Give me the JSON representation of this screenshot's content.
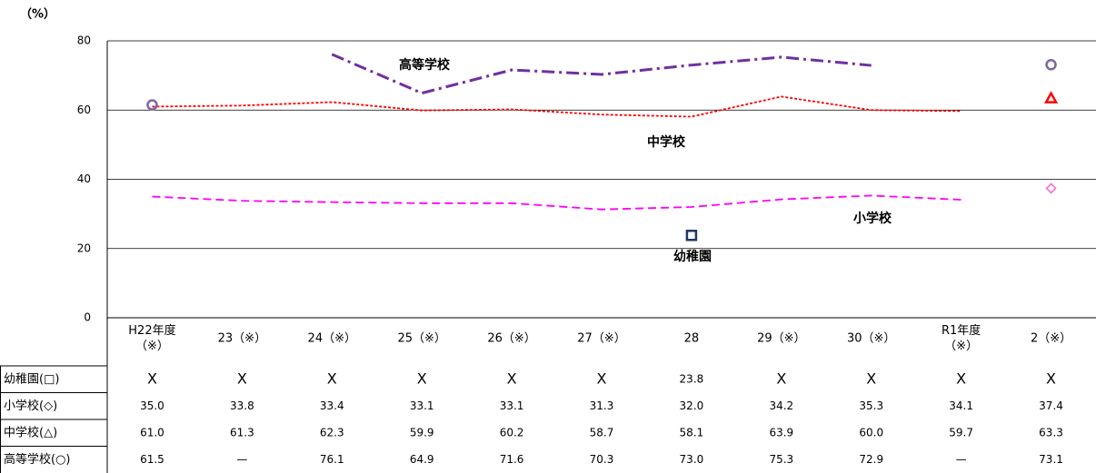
{
  "chart_data": {
    "type": "line",
    "unit_label": "（%）",
    "categories": [
      "H22年度\n（※）",
      "23（※）",
      "24（※）",
      "25（※）",
      "26（※）",
      "27（※）",
      "28",
      "29（※）",
      "30（※）",
      "R1年度\n（※）",
      "2（※）"
    ],
    "ylim": [
      0,
      80
    ],
    "yticks": [
      0,
      20,
      40,
      60,
      80
    ],
    "grid": true,
    "break_before_index": 10,
    "series": [
      {
        "name": "幼稚園(□)",
        "label": "幼稚園",
        "color": "#1f3864",
        "marker": "square",
        "line_style": "solid",
        "values": [
          null,
          null,
          null,
          null,
          null,
          null,
          23.8,
          null,
          null,
          null,
          null
        ],
        "value_labels": [
          "X",
          "X",
          "X",
          "X",
          "X",
          "X",
          "23.8",
          "X",
          "X",
          "X",
          "X"
        ]
      },
      {
        "name": "小学校(◇)",
        "label": "小学校",
        "color": "#ff00ff",
        "marker_color": "#ff66cc",
        "marker": "diamond",
        "line_style": "dashed",
        "values": [
          35.0,
          33.8,
          33.4,
          33.1,
          33.1,
          31.3,
          32.0,
          34.2,
          35.3,
          34.1,
          37.4
        ],
        "value_labels": [
          "35.0",
          "33.8",
          "33.4",
          "33.1",
          "33.1",
          "31.3",
          "32.0",
          "34.2",
          "35.3",
          "34.1",
          "37.4"
        ]
      },
      {
        "name": "中学校(△)",
        "label": "中学校",
        "color": "#ff0000",
        "marker": "triangle",
        "line_style": "dotted",
        "values": [
          61.0,
          61.3,
          62.3,
          59.9,
          60.2,
          58.7,
          58.1,
          63.9,
          60.0,
          59.7,
          63.3
        ],
        "value_labels": [
          "61.0",
          "61.3",
          "62.3",
          "59.9",
          "60.2",
          "58.7",
          "58.1",
          "63.9",
          "60.0",
          "59.7",
          "63.3"
        ]
      },
      {
        "name": "高等学校(○)",
        "label": "高等学校",
        "color": "#7030a0",
        "marker_color": "#8064a2",
        "marker": "circle",
        "line_style": "dashdot",
        "values": [
          61.5,
          null,
          76.1,
          64.9,
          71.6,
          70.3,
          73.0,
          75.3,
          72.9,
          null,
          73.1
        ],
        "value_labels": [
          "61.5",
          "—",
          "76.1",
          "64.9",
          "71.6",
          "70.3",
          "73.0",
          "75.3",
          "72.9",
          "—",
          "73.1"
        ]
      }
    ]
  }
}
